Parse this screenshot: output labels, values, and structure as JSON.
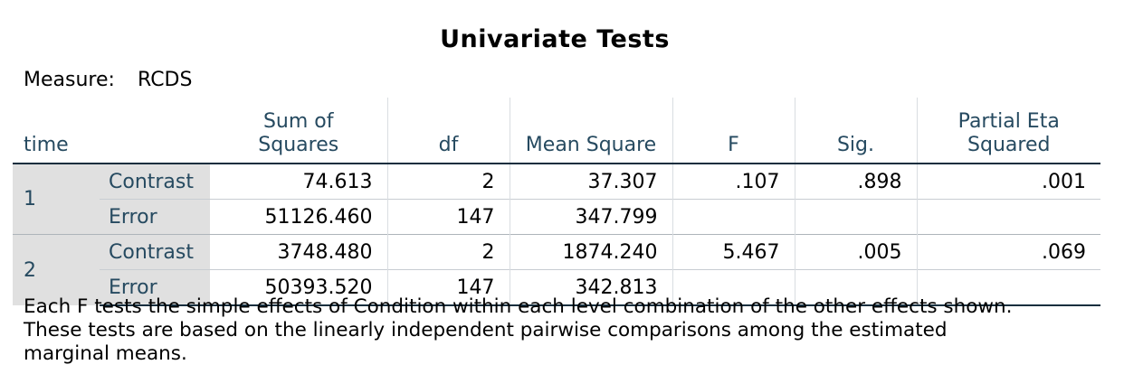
{
  "title": "Univariate Tests",
  "measure": {
    "label": "Measure:",
    "value": "RCDS"
  },
  "columns": {
    "time": "time",
    "sum_of_squares": [
      "Sum of",
      "Squares"
    ],
    "df": "df",
    "mean_square": "Mean Square",
    "f": "F",
    "sig": "Sig.",
    "partial_eta": [
      "Partial Eta",
      "Squared"
    ]
  },
  "rows": [
    {
      "time": "1",
      "contrast": {
        "label": "Contrast",
        "ss": "74.613",
        "df": "2",
        "ms": "37.307",
        "f": ".107",
        "sig": ".898",
        "eta": ".001"
      },
      "error": {
        "label": "Error",
        "ss": "51126.460",
        "df": "147",
        "ms": "347.799"
      }
    },
    {
      "time": "2",
      "contrast": {
        "label": "Contrast",
        "ss": "3748.480",
        "df": "2",
        "ms": "1874.240",
        "f": "5.467",
        "sig": ".005",
        "eta": ".069"
      },
      "error": {
        "label": "Error",
        "ss": "50393.520",
        "df": "147",
        "ms": "342.813"
      }
    }
  ],
  "footnote": [
    "Each F tests the simple effects of Condition within each level combination of the other effects shown.",
    "These tests are based on the linearly independent pairwise comparisons among the estimated",
    "marginal means."
  ]
}
